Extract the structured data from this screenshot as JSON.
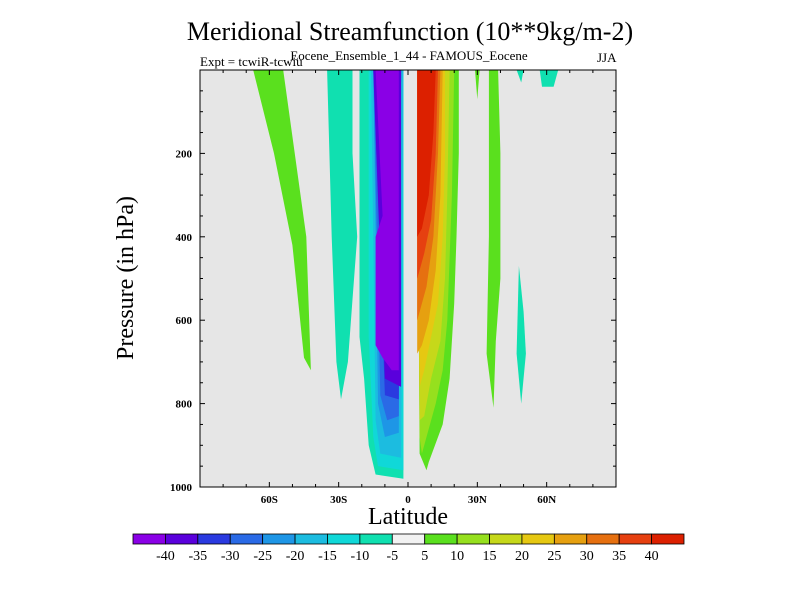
{
  "chart_data": {
    "type": "contour",
    "title": "Meridional Streamfunction (10**9kg/m-2)",
    "subtitle": "Eocene_Ensemble_1_44 - FAMOUS_Eocene",
    "expt_label": "Expt = tcwiR-tcwiu",
    "season": "JJA",
    "xlabel": "Latitude",
    "ylabel": "Pressure (in hPa)",
    "xlim": [
      -90,
      90
    ],
    "ylim": [
      1000,
      0
    ],
    "x_ticks": [
      {
        "value": -60,
        "label": "60S"
      },
      {
        "value": -30,
        "label": "30S"
      },
      {
        "value": 0,
        "label": "0"
      },
      {
        "value": 30,
        "label": "30N"
      },
      {
        "value": 60,
        "label": "60N"
      }
    ],
    "y_ticks": [
      {
        "value": 200,
        "label": "200"
      },
      {
        "value": 400,
        "label": "400"
      },
      {
        "value": 600,
        "label": "600"
      },
      {
        "value": 800,
        "label": "800"
      },
      {
        "value": 1000,
        "label": "1000"
      }
    ],
    "background_color": "#e6e6e6",
    "colorbar": {
      "labels": [
        "-40",
        "-35",
        "-30",
        "-25",
        "-20",
        "-15",
        "-10",
        "-5",
        "5",
        "10",
        "15",
        "20",
        "25",
        "30",
        "35",
        "40"
      ],
      "colors": [
        "#8a00e6",
        "#5a00dc",
        "#2a3ae0",
        "#2a6ae6",
        "#1e96e6",
        "#1cbce0",
        "#10d8d8",
        "#10e0b0",
        "#f2f2f2",
        "#5ae01e",
        "#96e01e",
        "#c6d81a",
        "#e6c812",
        "#e6a010",
        "#e67010",
        "#e64010",
        "#dc2000"
      ]
    },
    "regions": [
      {
        "level": "5",
        "color": "#5ae01e",
        "points": [
          [
            -67,
            0
          ],
          [
            -54,
            0
          ],
          [
            -44,
            400
          ],
          [
            -42,
            720
          ],
          [
            -45,
            690
          ],
          [
            -50,
            420
          ],
          [
            -58,
            200
          ]
        ]
      },
      {
        "level": "-5",
        "color": "#10e0b0",
        "points": [
          [
            -35,
            0
          ],
          [
            -24,
            0
          ],
          [
            -24,
            200
          ],
          [
            -22,
            400
          ],
          [
            -24,
            550
          ],
          [
            -26,
            700
          ],
          [
            -29,
            790
          ],
          [
            -31,
            700
          ],
          [
            -33,
            400
          ]
        ]
      },
      {
        "level": "-5",
        "color": "#10e0b0",
        "points": [
          [
            -21,
            0
          ],
          [
            -2,
            0
          ],
          [
            -2,
            980
          ],
          [
            -14,
            970
          ],
          [
            -17,
            900
          ],
          [
            -19,
            740
          ],
          [
            -21,
            640
          ],
          [
            -21,
            400
          ]
        ]
      },
      {
        "level": "-10",
        "color": "#10d8d8",
        "points": [
          [
            -17,
            0
          ],
          [
            -2,
            0
          ],
          [
            -2,
            960
          ],
          [
            -13,
            950
          ],
          [
            -15,
            880
          ],
          [
            -16,
            760
          ],
          [
            -17,
            640
          ],
          [
            -17,
            400
          ]
        ]
      },
      {
        "level": "-15",
        "color": "#1cbce0",
        "points": [
          [
            -16,
            0
          ],
          [
            -2,
            0
          ],
          [
            -3,
            930
          ],
          [
            -12,
            920
          ],
          [
            -14,
            840
          ]
        ]
      },
      {
        "level": "-20",
        "color": "#1e96e6",
        "points": [
          [
            -15,
            0
          ],
          [
            -3,
            0
          ],
          [
            -4,
            870
          ],
          [
            -10,
            880
          ],
          [
            -13,
            800
          ]
        ]
      },
      {
        "level": "-25",
        "color": "#2a6ae6",
        "points": [
          [
            -15,
            0
          ],
          [
            -3,
            0
          ],
          [
            -4,
            830
          ],
          [
            -9,
            840
          ],
          [
            -12,
            780
          ]
        ]
      },
      {
        "level": "-30",
        "color": "#2a3ae0",
        "points": [
          [
            -15,
            0
          ],
          [
            -3,
            0
          ],
          [
            -4,
            790
          ],
          [
            -10,
            780
          ]
        ]
      },
      {
        "level": "-35",
        "color": "#5a00dc",
        "points": [
          [
            -15,
            0
          ],
          [
            -3,
            0
          ],
          [
            -3,
            760
          ],
          [
            -10,
            740
          ]
        ]
      },
      {
        "level": "-40",
        "color": "#8a00e6",
        "points": [
          [
            -14,
            0
          ],
          [
            -4,
            0
          ],
          [
            -4,
            720
          ],
          [
            -7,
            720
          ],
          [
            -11,
            690
          ],
          [
            -14,
            660
          ],
          [
            -14,
            400
          ],
          [
            -11,
            350
          ]
        ]
      },
      {
        "level": "5",
        "color": "#5ae01e",
        "points": [
          [
            4,
            0
          ],
          [
            22,
            0
          ],
          [
            22,
            200
          ],
          [
            21,
            400
          ],
          [
            20,
            560
          ],
          [
            18,
            740
          ],
          [
            15,
            850
          ],
          [
            9,
            940
          ],
          [
            8,
            960
          ],
          [
            5,
            920
          ]
        ]
      },
      {
        "level": "10",
        "color": "#96e01e",
        "points": [
          [
            4,
            0
          ],
          [
            20,
            0
          ],
          [
            19,
            300
          ],
          [
            17,
            600
          ],
          [
            15,
            720
          ],
          [
            12,
            800
          ],
          [
            8,
            880
          ],
          [
            6,
            920
          ],
          [
            5,
            880
          ]
        ]
      },
      {
        "level": "15",
        "color": "#c6d81a",
        "points": [
          [
            4,
            0
          ],
          [
            18,
            0
          ],
          [
            17,
            300
          ],
          [
            16,
            500
          ],
          [
            14,
            650
          ],
          [
            10,
            740
          ],
          [
            7,
            830
          ],
          [
            5,
            840
          ]
        ]
      },
      {
        "level": "20",
        "color": "#e6c812",
        "points": [
          [
            4,
            0
          ],
          [
            16,
            0
          ],
          [
            16,
            200
          ],
          [
            15,
            400
          ],
          [
            13,
            560
          ],
          [
            10,
            640
          ],
          [
            7,
            720
          ],
          [
            5,
            760
          ]
        ]
      },
      {
        "level": "25",
        "color": "#e6a010",
        "points": [
          [
            4,
            0
          ],
          [
            15,
            0
          ],
          [
            14,
            300
          ],
          [
            12,
            480
          ],
          [
            9,
            600
          ],
          [
            6,
            660
          ],
          [
            4,
            680
          ]
        ]
      },
      {
        "level": "30",
        "color": "#e67010",
        "points": [
          [
            4,
            0
          ],
          [
            14,
            0
          ],
          [
            13,
            200
          ],
          [
            11,
            400
          ],
          [
            8,
            520
          ],
          [
            5,
            580
          ],
          [
            4,
            600
          ]
        ]
      },
      {
        "level": "35",
        "color": "#e64010",
        "points": [
          [
            4,
            0
          ],
          [
            13,
            0
          ],
          [
            12,
            200
          ],
          [
            10,
            360
          ],
          [
            7,
            440
          ],
          [
            5,
            480
          ],
          [
            4,
            500
          ]
        ]
      },
      {
        "level": "40",
        "color": "#dc2000",
        "points": [
          [
            4,
            0
          ],
          [
            12,
            0
          ],
          [
            11,
            150
          ],
          [
            9,
            300
          ],
          [
            6,
            380
          ],
          [
            4,
            400
          ]
        ]
      },
      {
        "level": "5",
        "color": "#5ae01e",
        "points": [
          [
            29,
            0
          ],
          [
            31,
            0
          ],
          [
            30,
            70
          ]
        ]
      },
      {
        "level": "5",
        "color": "#5ae01e",
        "points": [
          [
            35,
            0
          ],
          [
            39,
            0
          ],
          [
            40,
            200
          ],
          [
            40,
            500
          ],
          [
            38,
            650
          ],
          [
            37,
            810
          ],
          [
            34,
            680
          ],
          [
            35,
            400
          ]
        ]
      },
      {
        "level": "-5",
        "color": "#10e0b0",
        "points": [
          [
            47,
            0
          ],
          [
            50,
            0
          ],
          [
            49,
            30
          ]
        ]
      },
      {
        "level": "-5",
        "color": "#10e0b0",
        "points": [
          [
            48,
            470
          ],
          [
            50,
            580
          ],
          [
            51,
            680
          ],
          [
            49,
            800
          ],
          [
            47,
            680
          ]
        ]
      },
      {
        "level": "-5",
        "color": "#10e0b0",
        "points": [
          [
            57,
            0
          ],
          [
            65,
            0
          ],
          [
            63,
            40
          ],
          [
            58,
            40
          ]
        ]
      }
    ]
  }
}
